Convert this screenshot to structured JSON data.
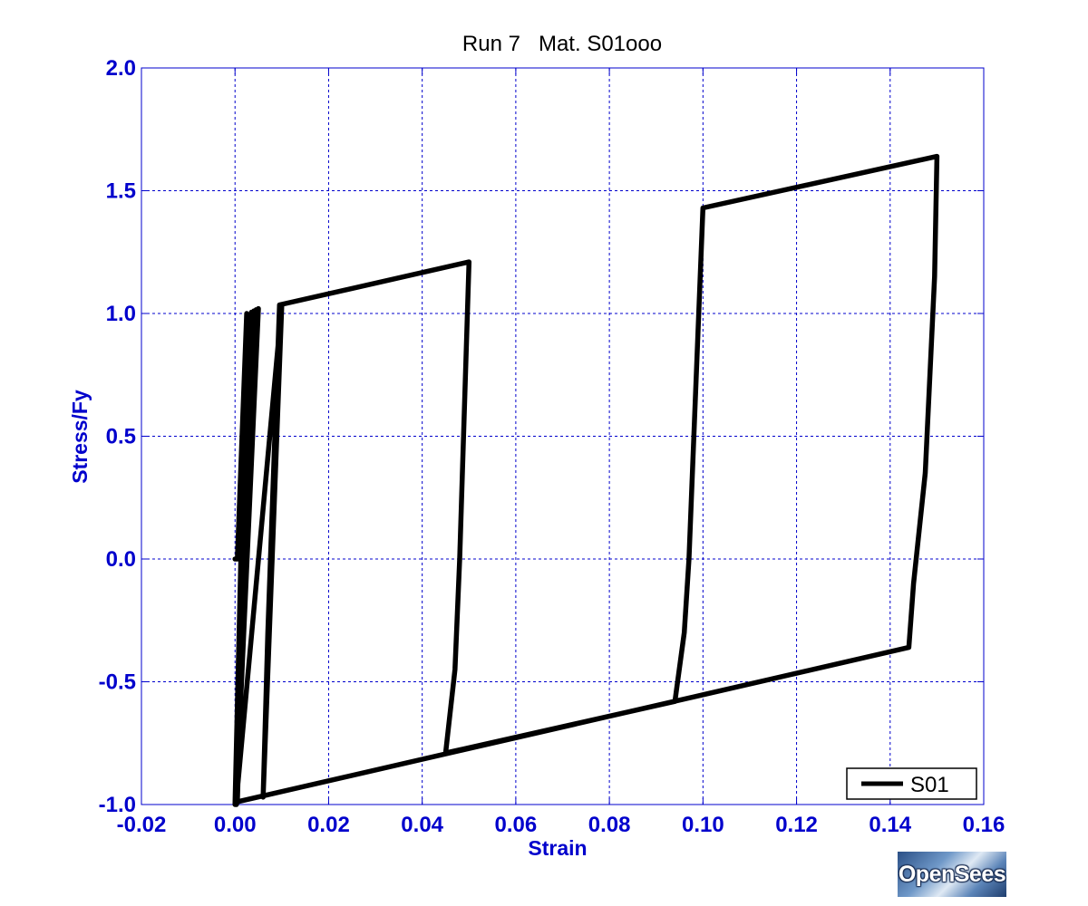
{
  "chart_data": {
    "type": "line",
    "title": "Run 7   Mat. S01ooo",
    "xlabel": "Strain",
    "ylabel": "Stress/Fy",
    "xlim": [
      -0.02,
      0.16
    ],
    "ylim": [
      -1.0,
      2.0
    ],
    "xticks": [
      -0.02,
      0.0,
      0.02,
      0.04,
      0.06,
      0.08,
      0.1,
      0.12,
      0.14,
      0.16
    ],
    "xtick_labels": [
      "-0.02",
      "0.00",
      "0.02",
      "0.04",
      "0.06",
      "0.08",
      "0.10",
      "0.12",
      "0.14",
      "0.16"
    ],
    "yticks": [
      -1.0,
      -0.5,
      0.0,
      0.5,
      1.0,
      1.5,
      2.0
    ],
    "ytick_labels": [
      "-1.0",
      "-0.5",
      "0.0",
      "0.5",
      "1.0",
      "1.5",
      "2.0"
    ],
    "grid": true,
    "legend_position": "bottom-right",
    "series": [
      {
        "name": "S01",
        "color": "#000000",
        "x": [
          0.0,
          0.0005,
          0.0025,
          0.0,
          0.0003,
          0.0035,
          0.0005,
          0.0002,
          0.004,
          0.0003,
          0.0045,
          0.0002,
          0.005,
          0.0002,
          0.01,
          0.006,
          0.007,
          0.0095,
          0.05,
          0.048,
          0.047,
          0.045,
          0.094,
          0.096,
          0.097,
          0.1,
          0.15,
          0.1495,
          0.1475,
          0.145,
          0.144,
          0.0002
        ],
        "y": [
          0.0,
          0.0,
          1.0,
          -1.0,
          -1.0,
          1.005,
          -0.99,
          -1.0,
          1.01,
          -1.0,
          1.015,
          -1.0,
          1.02,
          -1.0,
          1.035,
          -0.97,
          -0.3,
          1.035,
          1.21,
          0.0,
          -0.45,
          -0.79,
          -0.58,
          -0.3,
          0.0,
          1.43,
          1.64,
          1.15,
          0.35,
          -0.1,
          -0.36,
          -0.99
        ]
      }
    ]
  },
  "logo": {
    "text": "OpenSees"
  }
}
